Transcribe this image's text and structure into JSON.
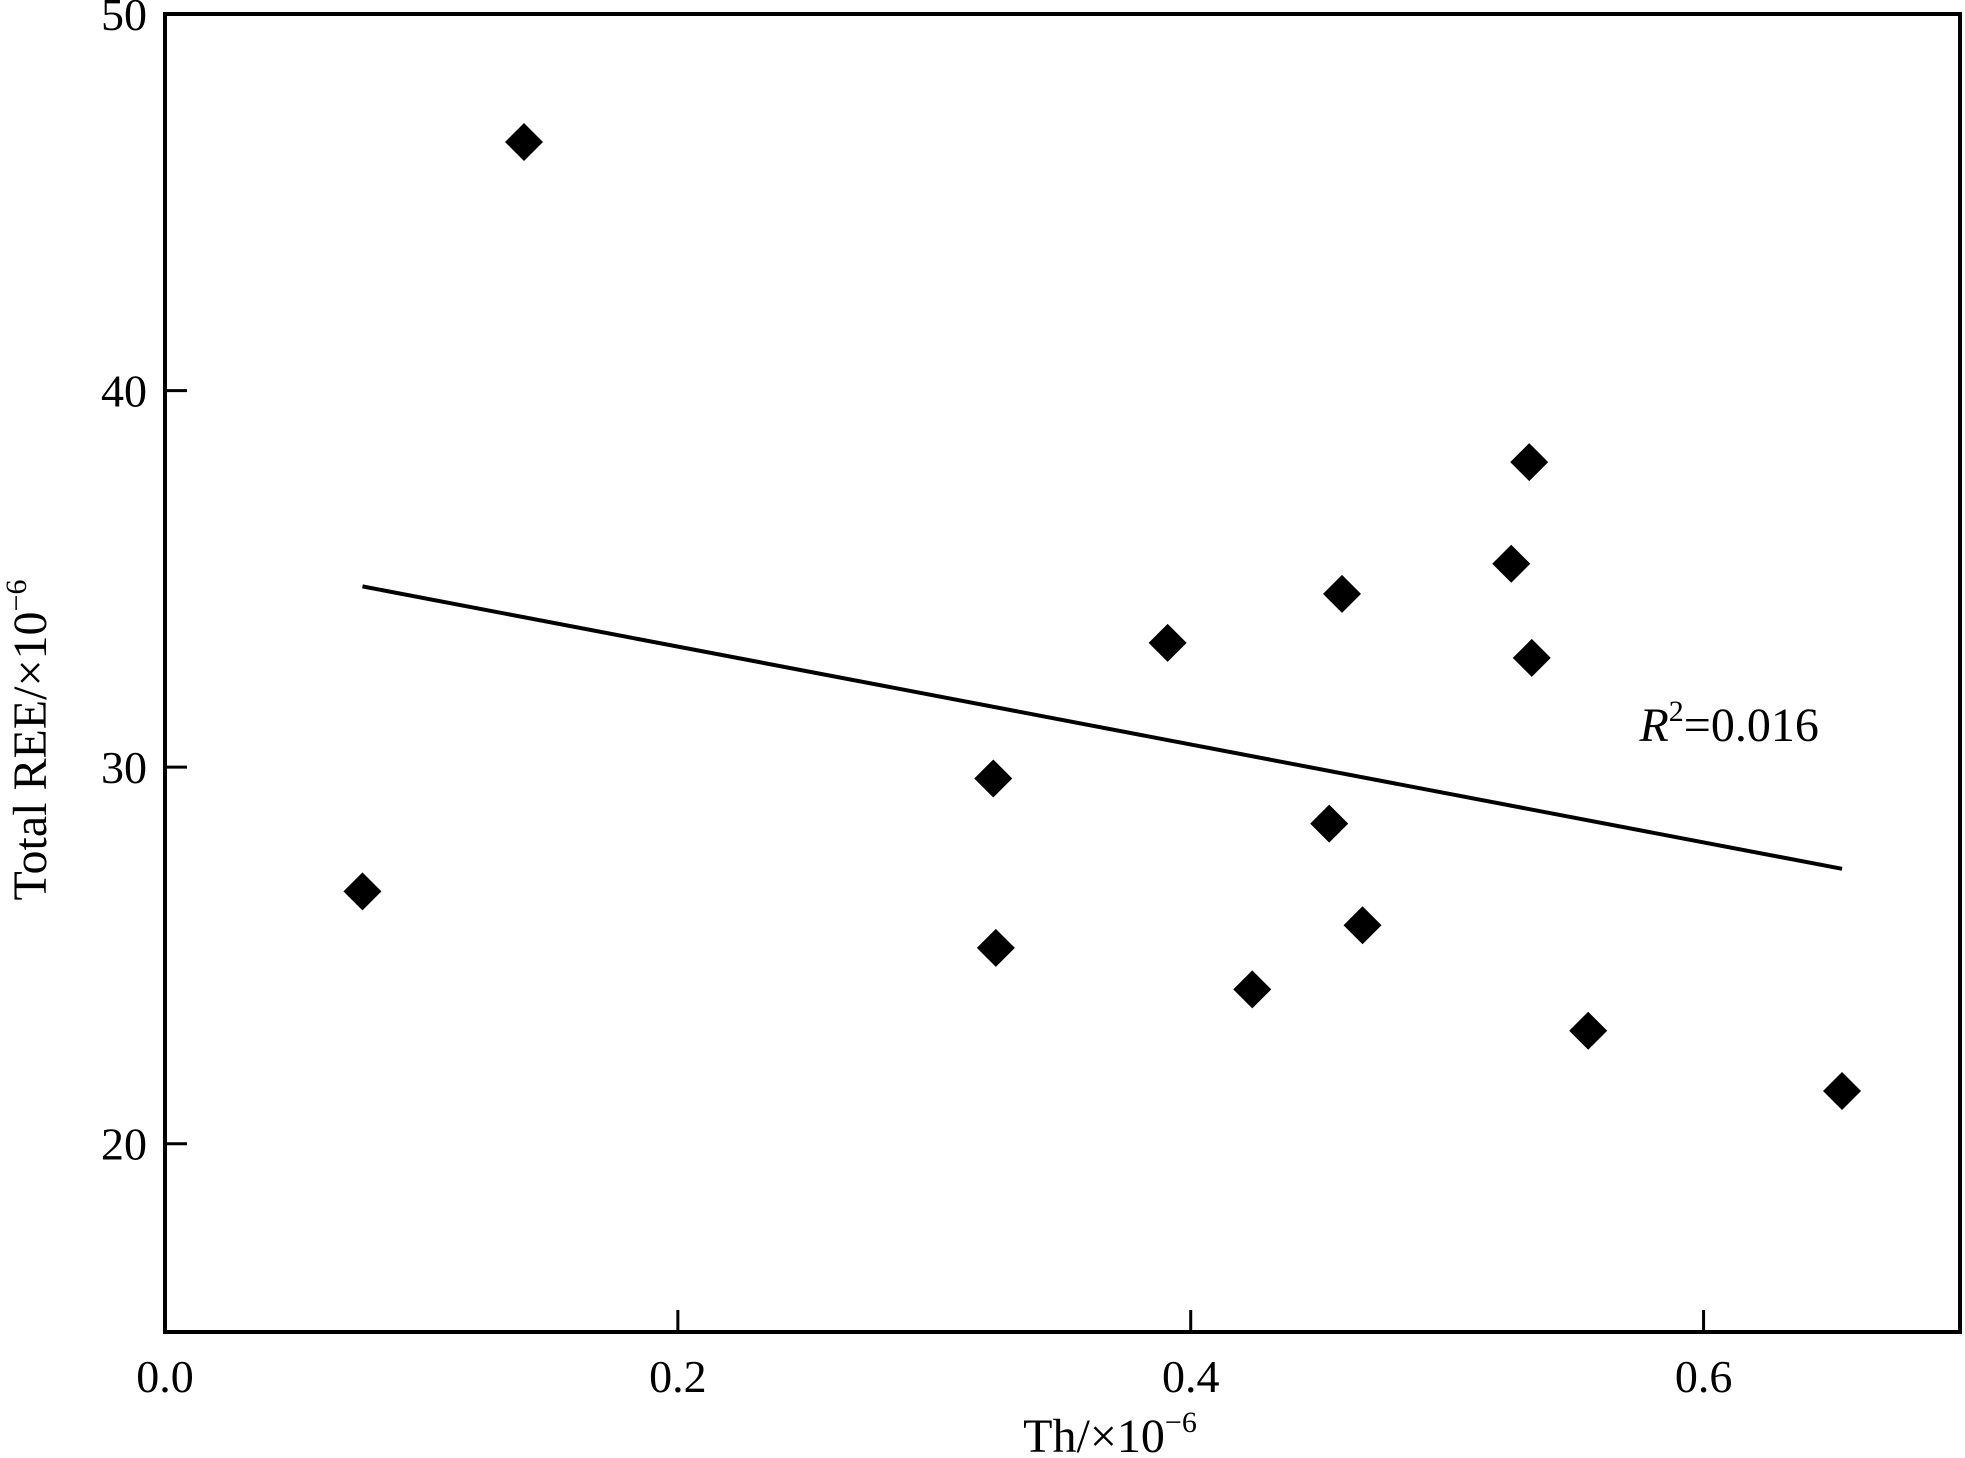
{
  "chart_data": {
    "type": "scatter",
    "xlabel": "Th/×10",
    "xlabel_exp": "−6",
    "ylabel": "Total REE/×10",
    "ylabel_exp": "−6",
    "xlim": [
      0.0,
      0.7
    ],
    "ylim": [
      15,
      50
    ],
    "xticks": [
      0.0,
      0.2,
      0.4,
      0.6
    ],
    "xtick_labels": [
      "0.0",
      "0.2",
      "0.4",
      "0.6"
    ],
    "yticks": [
      20,
      30,
      40,
      50
    ],
    "ytick_labels": [
      "20",
      "30",
      "40",
      "50"
    ],
    "grid": false,
    "marker": "diamond",
    "marker_color": "#000000",
    "series": [
      {
        "points": [
          {
            "x": 0.077,
            "y": 26.7
          },
          {
            "x": 0.14,
            "y": 46.6
          },
          {
            "x": 0.323,
            "y": 29.7
          },
          {
            "x": 0.324,
            "y": 25.2
          },
          {
            "x": 0.391,
            "y": 33.3
          },
          {
            "x": 0.424,
            "y": 24.1
          },
          {
            "x": 0.454,
            "y": 28.5
          },
          {
            "x": 0.459,
            "y": 34.6
          },
          {
            "x": 0.467,
            "y": 25.8
          },
          {
            "x": 0.525,
            "y": 35.4
          },
          {
            "x": 0.532,
            "y": 38.1
          },
          {
            "x": 0.533,
            "y": 32.9
          },
          {
            "x": 0.555,
            "y": 23.0
          },
          {
            "x": 0.654,
            "y": 21.4
          }
        ]
      }
    ],
    "trendline": {
      "x1": 0.077,
      "y1": 34.8,
      "x2": 0.654,
      "y2": 27.3
    },
    "annotation": {
      "var": "R",
      "sup": "2",
      "text": "=0.016",
      "x": 0.575,
      "y": 30.7
    }
  }
}
